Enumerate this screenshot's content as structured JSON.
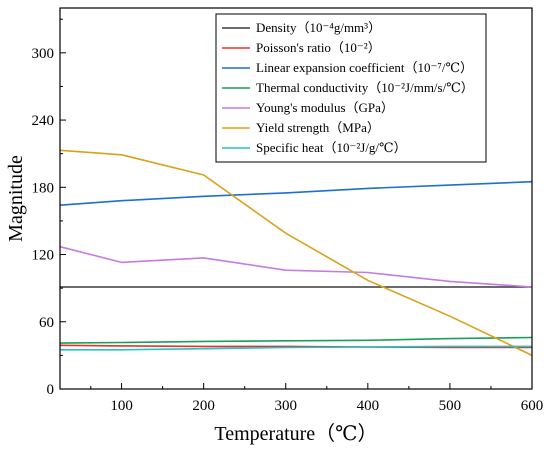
{
  "chart_data": {
    "type": "line",
    "xlabel": "Temperature（℃）",
    "ylabel": "Magnitude",
    "xlim": [
      25,
      600
    ],
    "ylim": [
      0,
      340
    ],
    "xticks": [
      100,
      200,
      300,
      400,
      500,
      600
    ],
    "yticks": [
      0,
      60,
      120,
      180,
      240,
      300
    ],
    "grid": false,
    "legend_position": "top-right",
    "series": [
      {
        "name": "Density（10⁻⁴g/mm³）",
        "color": "#3a3a3a",
        "x": [
          25,
          100,
          200,
          300,
          400,
          500,
          600
        ],
        "y": [
          91,
          91,
          91,
          91,
          91,
          91,
          91
        ]
      },
      {
        "name": "Poisson's ratio（10⁻²）",
        "color": "#e8302a",
        "x": [
          25,
          100,
          200,
          300,
          400,
          500,
          600
        ],
        "y": [
          39,
          38.5,
          38,
          38,
          37.5,
          37,
          37
        ]
      },
      {
        "name": "Linear expansion coefficient（10⁻⁷/℃）",
        "color": "#1f6fd1",
        "x": [
          25,
          100,
          200,
          300,
          400,
          500,
          600
        ],
        "y": [
          164,
          168,
          172,
          175,
          179,
          182,
          185
        ]
      },
      {
        "name": "Thermal conductivity（10⁻²J/mm/s/℃）",
        "color": "#1a9e5a",
        "x": [
          25,
          100,
          200,
          300,
          400,
          500,
          600
        ],
        "y": [
          41,
          41.5,
          42.5,
          43,
          43.5,
          45,
          46
        ]
      },
      {
        "name": "Young's modulus（GPa）",
        "color": "#c77be0",
        "x": [
          25,
          100,
          200,
          300,
          400,
          500,
          600
        ],
        "y": [
          127,
          113,
          117,
          106,
          104,
          96,
          91
        ]
      },
      {
        "name": "Yield strength（MPa）",
        "color": "#dba219",
        "x": [
          25,
          100,
          200,
          300,
          400,
          500,
          600
        ],
        "y": [
          213,
          209,
          191,
          139,
          97,
          65,
          30
        ]
      },
      {
        "name": "Specific heat（10⁻²J/g/℃）",
        "color": "#22c4c4",
        "x": [
          25,
          100,
          200,
          300,
          400,
          500,
          600
        ],
        "y": [
          35,
          35,
          36,
          37,
          37.5,
          38,
          38
        ]
      }
    ]
  }
}
